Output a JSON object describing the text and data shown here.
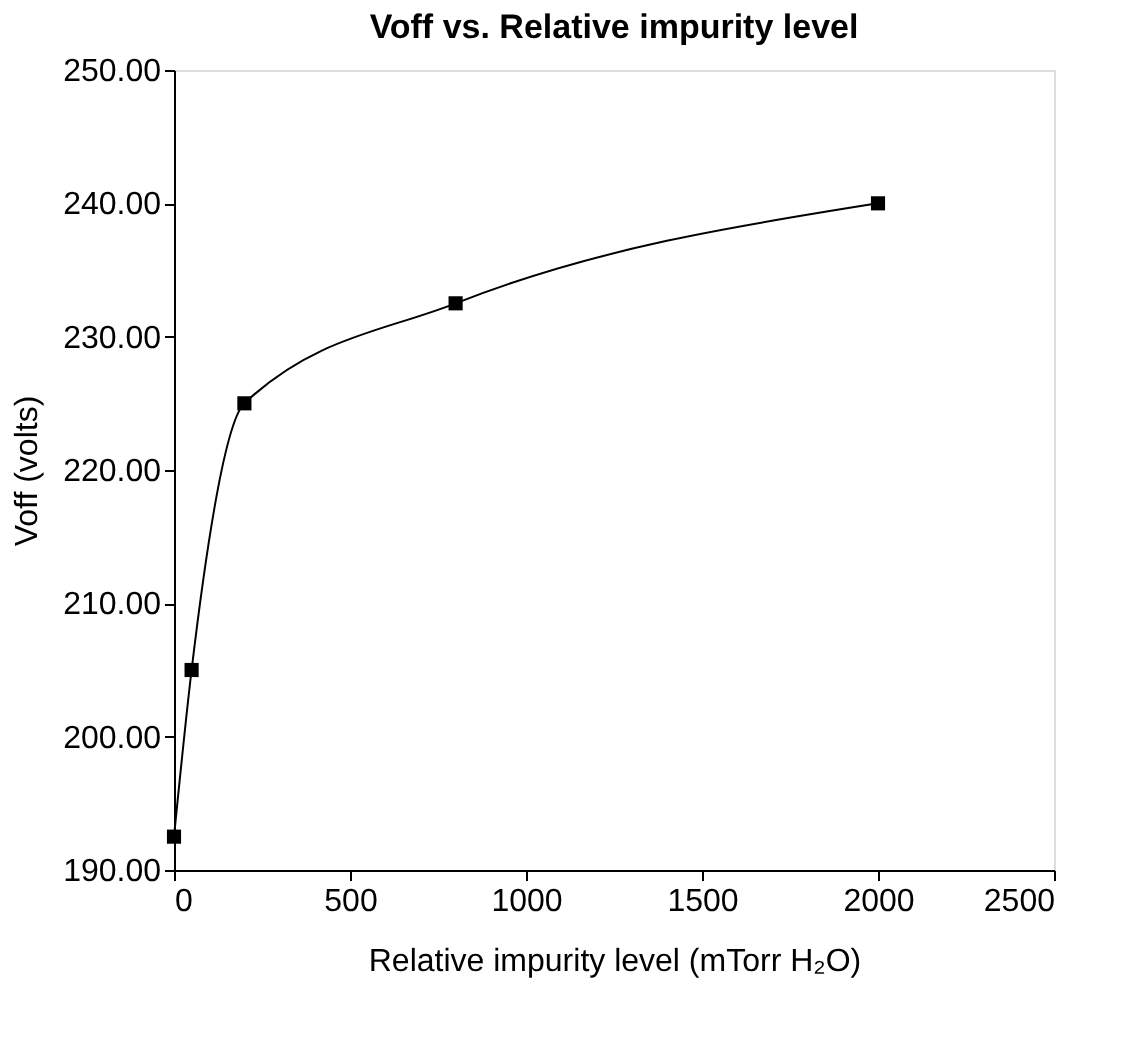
{
  "chart_data": {
    "type": "line",
    "title": "Voff vs. Relative impurity level",
    "xlabel": "Relative impurity level (mTorr H₂O)",
    "ylabel": "Voff (volts)",
    "x": [
      0,
      50,
      200,
      800,
      2000
    ],
    "series": [
      {
        "color": "#000000",
        "values": [
          192.5,
          205,
          225,
          232.5,
          240
        ]
      }
    ],
    "marker": "square",
    "line_style": "solid",
    "grid": false,
    "xlim": [
      0,
      2500
    ],
    "xticks": [
      0,
      500,
      1000,
      1500,
      2000,
      2500
    ],
    "ylim": [
      190,
      250
    ],
    "yticks": [
      {
        "value": 190,
        "label": "190.00"
      },
      {
        "value": 200,
        "label": "200.00"
      },
      {
        "value": 210,
        "label": "210.00"
      },
      {
        "value": 220,
        "label": "220.00"
      },
      {
        "value": 230,
        "label": "230.00"
      },
      {
        "value": 240,
        "label": "240.00"
      },
      {
        "value": 250,
        "label": "250.00"
      }
    ]
  }
}
